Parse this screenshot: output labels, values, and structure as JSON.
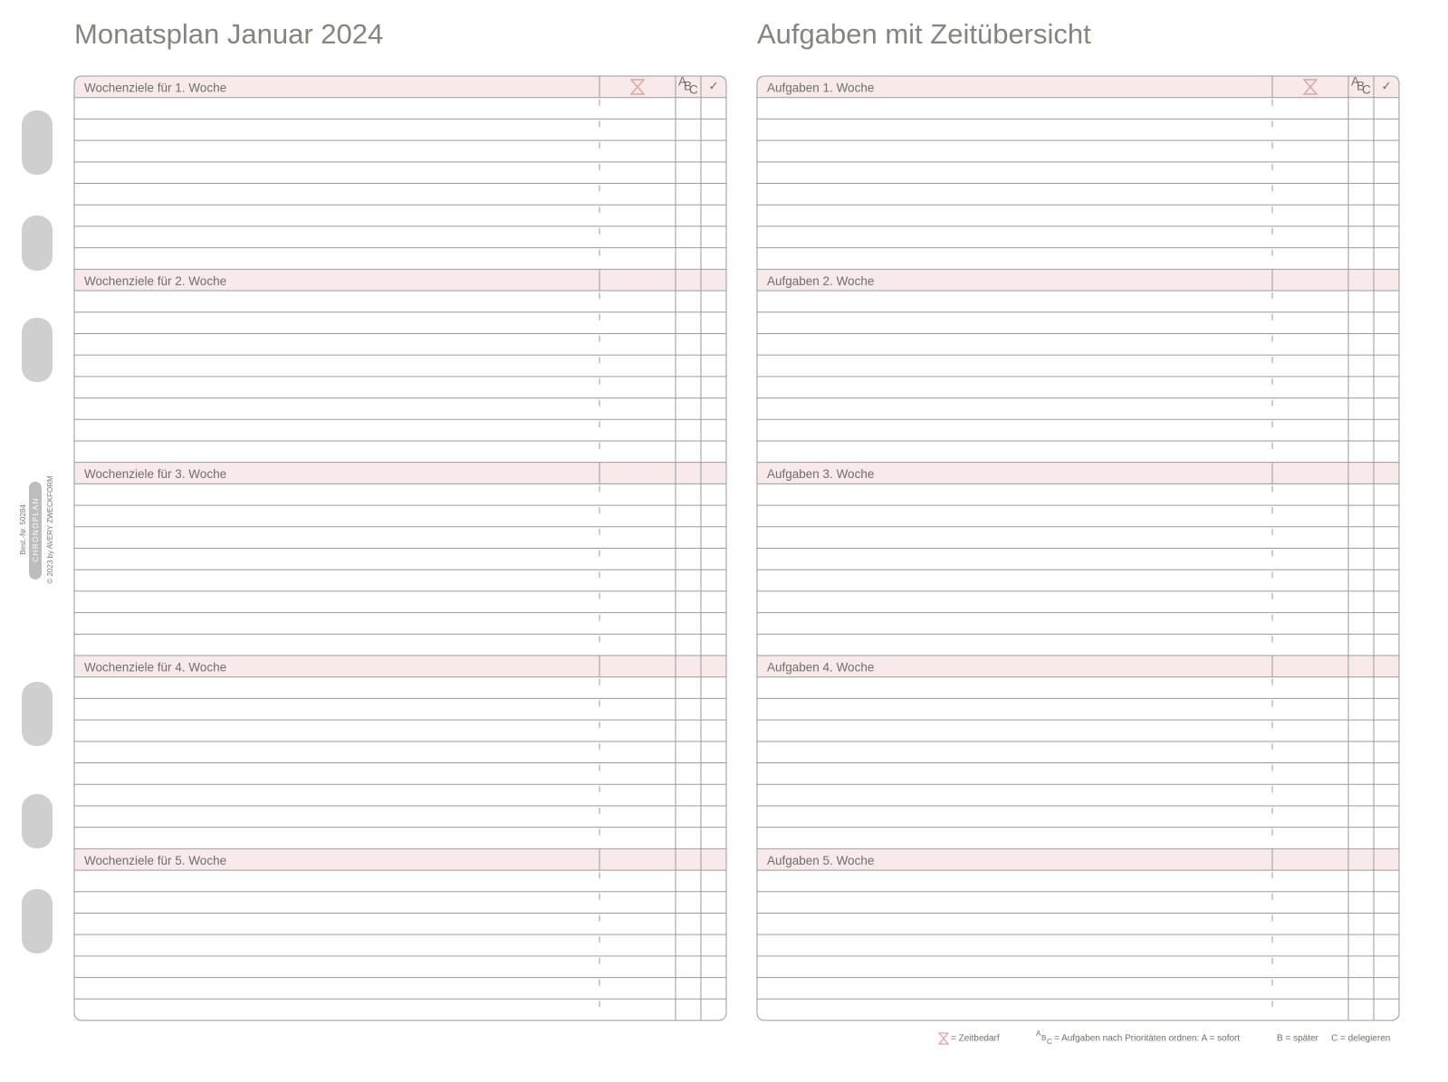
{
  "left": {
    "title": "Monatsplan Januar 2024",
    "sections": [
      "Wochenziele für 1. Woche",
      "Wochenziele für 2. Woche",
      "Wochenziele für 3. Woche",
      "Wochenziele für 4. Woche",
      "Wochenziele für 5. Woche"
    ]
  },
  "right": {
    "title": "Aufgaben mit Zeitübersicht",
    "sections": [
      "Aufgaben 1. Woche",
      "Aufgaben 2. Woche",
      "Aufgaben 3. Woche",
      "Aufgaben 4. Woche",
      "Aufgaben 5. Woche"
    ]
  },
  "header": {
    "priority": [
      "A",
      "B",
      "C"
    ],
    "done": "✓"
  },
  "side": {
    "order_number": "Best.-Nr. 50284",
    "brand": "CHRONOPLAN",
    "copyright": "© 2023 by AVERY ZWECKFORM"
  },
  "legend": {
    "time": "= Zeitbedarf",
    "priority": "= Aufgaben nach Prioritäten ordnen: A = sofort",
    "b": "B = später",
    "c": "C = delegieren"
  }
}
